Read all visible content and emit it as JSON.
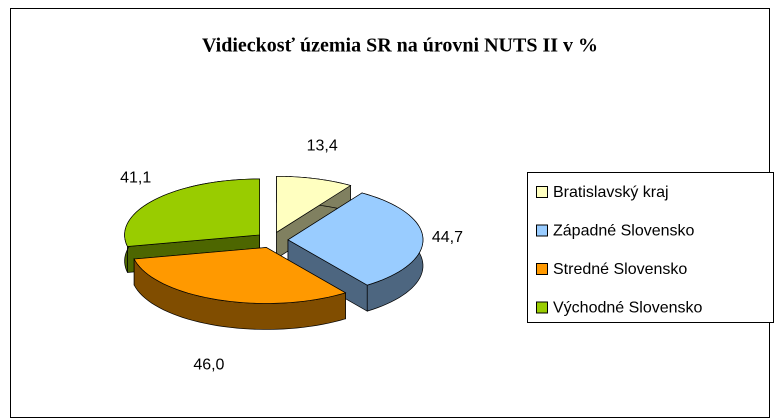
{
  "chart_data": {
    "type": "pie3d",
    "title": "Vidieckosť územia SR na úrovni NUTS II v %",
    "categories": [
      "Bratislavský kraj",
      "Západné Slovensko",
      "Stredné Slovensko",
      "Východné Slovensko"
    ],
    "values": [
      13.4,
      44.7,
      46.0,
      41.1
    ],
    "value_labels": [
      "13,4",
      "44,7",
      "46,0",
      "41,1"
    ],
    "colors": [
      "#ffffc0",
      "#99ccff",
      "#ff9900",
      "#99cc00"
    ],
    "legend": "right"
  }
}
